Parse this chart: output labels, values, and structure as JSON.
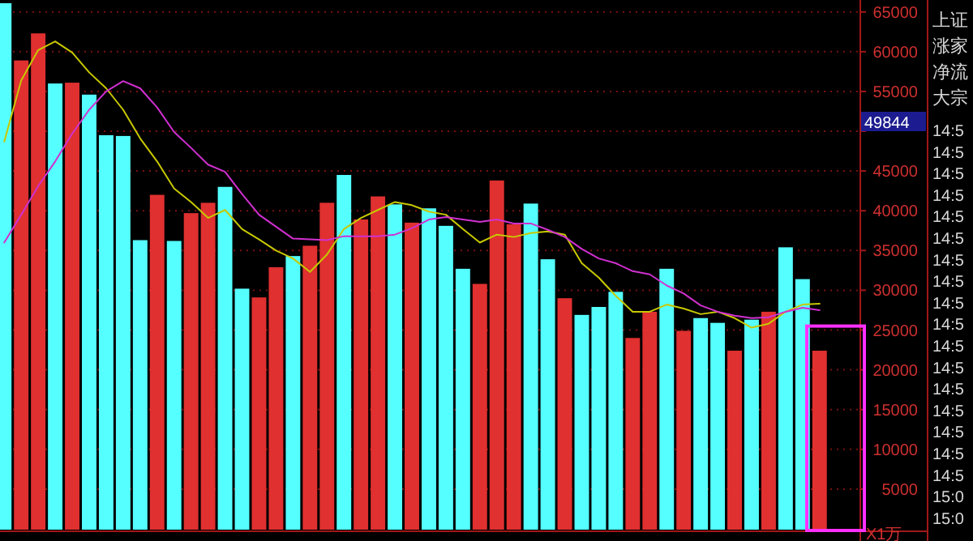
{
  "chart_data": {
    "type": "bar",
    "categories": [
      null,
      null,
      null,
      null,
      null,
      null,
      null,
      null,
      null,
      null,
      null,
      null,
      null,
      null,
      null,
      null,
      null,
      null,
      null,
      null,
      null,
      null,
      null,
      null,
      null,
      null,
      null,
      null,
      null,
      null,
      null,
      null,
      null,
      null,
      null,
      null,
      null,
      null,
      null,
      null,
      null,
      null,
      null,
      null,
      null,
      null,
      null,
      null,
      null
    ],
    "series": [
      {
        "values": [
          66000,
          58800,
          62200,
          55900,
          56000,
          54500,
          49400,
          49300,
          36200,
          41900,
          36100,
          39600,
          40900,
          42900,
          30100,
          29000,
          32800,
          34200,
          35500,
          40900,
          44400,
          38800,
          41700,
          40700,
          38400,
          40200,
          38000,
          32600,
          30700,
          43700,
          38200,
          40800,
          33800,
          28900,
          26800,
          27800,
          29700,
          23900,
          27200,
          32600,
          24800,
          26400,
          25800,
          22300,
          26200,
          27200,
          35300,
          31300,
          22300
        ],
        "colors": [
          "#55ffff",
          "#e03030",
          "#e03030",
          "#55ffff",
          "#e03030",
          "#55ffff",
          "#55ffff",
          "#55ffff",
          "#55ffff",
          "#e03030",
          "#55ffff",
          "#e03030",
          "#e03030",
          "#55ffff",
          "#55ffff",
          "#e03030",
          "#e03030",
          "#55ffff",
          "#e03030",
          "#e03030",
          "#55ffff",
          "#e03030",
          "#e03030",
          "#55ffff",
          "#e03030",
          "#55ffff",
          "#55ffff",
          "#55ffff",
          "#e03030",
          "#e03030",
          "#e03030",
          "#55ffff",
          "#55ffff",
          "#e03030",
          "#55ffff",
          "#55ffff",
          "#55ffff",
          "#e03030",
          "#e03030",
          "#55ffff",
          "#e03030",
          "#55ffff",
          "#55ffff",
          "#e03030",
          "#55ffff",
          "#e03030",
          "#55ffff",
          "#55ffff",
          "#e03030"
        ]
      },
      {
        "type": "line",
        "color": "#c8c800",
        "values": [
          48700,
          56400,
          60200,
          61300,
          59900,
          57400,
          55400,
          52700,
          49100,
          46200,
          42800,
          41100,
          39100,
          40100,
          37700,
          36400,
          35000,
          34000,
          32300,
          34500,
          37700,
          39100,
          40100,
          41100,
          40700,
          39900,
          39500,
          37700,
          36000,
          37000,
          36700,
          37200,
          37400,
          37000,
          33400,
          31600,
          29300,
          27300,
          27300,
          28200,
          27700,
          27000,
          27300,
          26500,
          25300,
          25800,
          27300,
          28200,
          28300
        ]
      },
      {
        "type": "line",
        "color": "#d030d0",
        "values": [
          36000,
          39500,
          43100,
          46200,
          49700,
          52700,
          55000,
          56300,
          55400,
          53000,
          49900,
          47900,
          45800,
          44900,
          42100,
          39500,
          38000,
          36500,
          36400,
          36300,
          36800,
          36800,
          36800,
          37000,
          37800,
          38900,
          39200,
          38900,
          38600,
          38900,
          38400,
          38400,
          37600,
          36700,
          35200,
          34000,
          33400,
          32400,
          32000,
          30600,
          29600,
          28100,
          27300,
          26800,
          26500,
          26600,
          27300,
          27800,
          27500
        ]
      }
    ],
    "ylim": [
      0,
      66500
    ],
    "yticks": [
      5000,
      10000,
      15000,
      20000,
      25000,
      30000,
      35000,
      40000,
      45000,
      {
        "value": 50000,
        "label": null
      },
      55000,
      60000,
      65000
    ],
    "grid": "y",
    "ylabel": "X1万",
    "annotations": [
      "49844",
      "上证",
      "涨家",
      "净流",
      "大宗",
      "14:5",
      "14:5",
      "14:5",
      "14:5",
      "14:5",
      "14:5",
      "14:5",
      "14:5",
      "14:5",
      "14:5",
      "14:5",
      "14:5",
      "14:5",
      "14:5",
      "14:5",
      "14:5",
      "14:5",
      "15:0",
      "15:0"
    ]
  }
}
